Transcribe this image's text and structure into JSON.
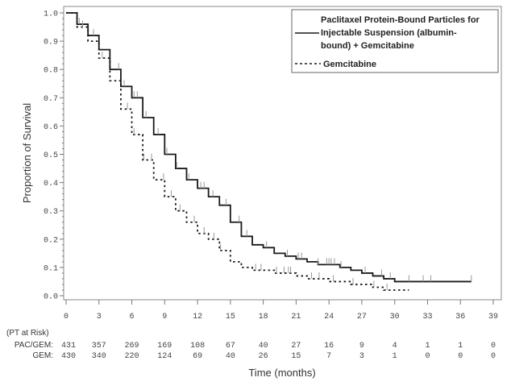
{
  "chart_data": {
    "type": "line",
    "title": "",
    "xlabel": "Time (months)",
    "ylabel": "Proportion of Survival",
    "xlim": [
      0,
      39
    ],
    "ylim": [
      0.0,
      1.0
    ],
    "x_ticks": [
      "0",
      "3",
      "6",
      "9",
      "12",
      "15",
      "18",
      "21",
      "24",
      "27",
      "30",
      "33",
      "36",
      "39"
    ],
    "x_tick_values": [
      0,
      3,
      6,
      9,
      12,
      15,
      18,
      21,
      24,
      27,
      30,
      33,
      36,
      39
    ],
    "y_ticks": [
      "0.0",
      "0.1",
      "0.2",
      "0.3",
      "0.4",
      "0.5",
      "0.6",
      "0.7",
      "0.8",
      "0.9",
      "1.0"
    ],
    "y_tick_values": [
      0,
      0.1,
      0.2,
      0.3,
      0.4,
      0.5,
      0.6,
      0.7,
      0.8,
      0.9,
      1.0
    ],
    "legend_position": "top-right",
    "series": [
      {
        "name": "Paclitaxel Protein-Bound Particles for Injectable Suspension (albumin-bound) + Gemcitabine",
        "legend_lines": [
          "Paclitaxel Protein-Bound Particles for",
          "Injectable Suspension (albumin-",
          "bound) + Gemcitabine"
        ],
        "style": "solid",
        "color": "#1a1a1a",
        "x": [
          0,
          1,
          2,
          3,
          4,
          5,
          6,
          7,
          8,
          9,
          10,
          11,
          12,
          13,
          14,
          15,
          16,
          17,
          18,
          19,
          20,
          21,
          22,
          23,
          24,
          25,
          26,
          27,
          28,
          29,
          30,
          37
        ],
        "y": [
          1.0,
          0.96,
          0.92,
          0.87,
          0.8,
          0.74,
          0.7,
          0.63,
          0.57,
          0.5,
          0.45,
          0.41,
          0.38,
          0.35,
          0.32,
          0.26,
          0.21,
          0.18,
          0.17,
          0.15,
          0.14,
          0.13,
          0.12,
          0.11,
          0.11,
          0.1,
          0.09,
          0.08,
          0.07,
          0.06,
          0.05,
          0.05
        ],
        "censored_x": [
          1.2,
          2.5,
          4.8,
          5.3,
          6.2,
          6.5,
          7.3,
          8.4,
          9.2,
          10.1,
          11.2,
          12.3,
          12.6,
          13.4,
          14.6,
          15.8,
          16.5,
          18.3,
          20.2,
          21.2,
          21.5,
          23.0,
          23.8,
          24.0,
          24.2,
          24.5,
          25.1,
          27.3,
          28.8,
          29.6,
          31.3,
          32.6,
          33.3,
          37.0
        ]
      },
      {
        "name": "Gemcitabine",
        "legend_lines": [
          "Gemcitabine"
        ],
        "style": "dashed",
        "color": "#1a1a1a",
        "x": [
          0,
          1,
          2,
          3,
          4,
          5,
          6,
          7,
          8,
          9,
          10,
          11,
          12,
          13,
          14,
          15,
          16,
          17,
          18,
          19,
          20,
          21,
          22,
          23,
          24,
          25,
          26,
          27,
          28,
          29,
          31.3
        ],
        "y": [
          1.0,
          0.95,
          0.9,
          0.84,
          0.76,
          0.66,
          0.57,
          0.48,
          0.41,
          0.35,
          0.3,
          0.26,
          0.22,
          0.2,
          0.16,
          0.12,
          0.1,
          0.09,
          0.09,
          0.08,
          0.08,
          0.07,
          0.06,
          0.06,
          0.05,
          0.05,
          0.04,
          0.04,
          0.03,
          0.02,
          0.02
        ],
        "censored_x": [
          1.5,
          3.3,
          5.6,
          6.2,
          7.1,
          7.8,
          8.9,
          9.6,
          10.4,
          11.7,
          12.6,
          13.5,
          14.1,
          17.3,
          17.8,
          19.2,
          19.9,
          20.3,
          20.5,
          22.4,
          23.1,
          24.4,
          26.2,
          28.1,
          29.3
        ]
      }
    ],
    "risk_table": {
      "header": "(PT at Risk)",
      "rows": [
        {
          "label": "PAC/GEM:",
          "values": [
            "431",
            "357",
            "269",
            "169",
            "108",
            "67",
            "40",
            "27",
            "16",
            "9",
            "4",
            "1",
            "1",
            "0"
          ]
        },
        {
          "label": "GEM:",
          "values": [
            "430",
            "340",
            "220",
            "124",
            "69",
            "40",
            "26",
            "15",
            "7",
            "3",
            "1",
            "0",
            "0",
            "0"
          ]
        }
      ]
    }
  }
}
